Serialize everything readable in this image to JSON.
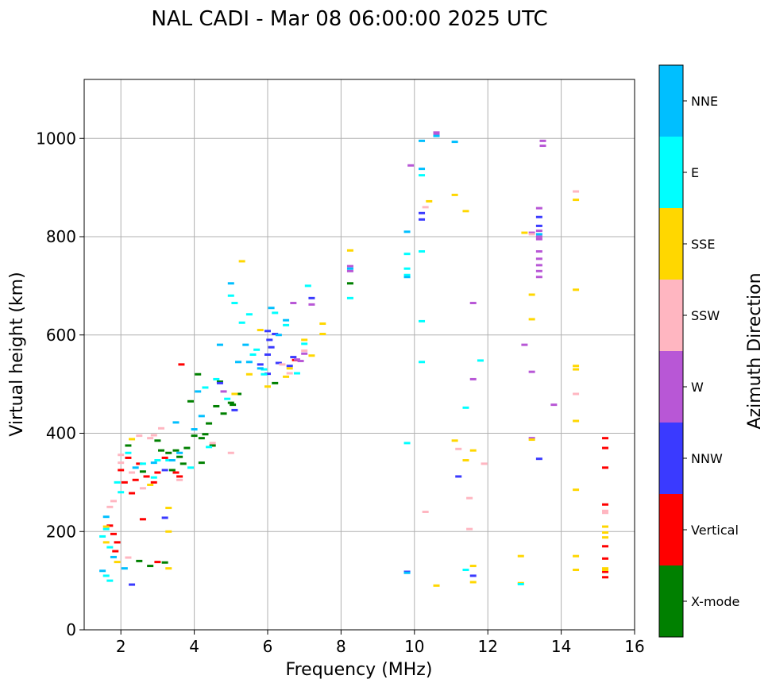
{
  "chart_data": {
    "type": "scatter",
    "title": "NAL CADI - Mar 08 06:00:00 2025 UTC",
    "xlabel": "Frequency (MHz)",
    "ylabel": "Virtual height (km)",
    "xlim": [
      1,
      16
    ],
    "ylim": [
      0,
      1120
    ],
    "xticks": [
      2,
      4,
      6,
      8,
      10,
      12,
      14,
      16
    ],
    "yticks": [
      0,
      200,
      400,
      600,
      800,
      1000
    ],
    "grid": true,
    "marker": "horizontal-dash",
    "colorbar": {
      "label": "Azimuth Direction",
      "categories": [
        {
          "name": "X-mode",
          "color": "#008000"
        },
        {
          "name": "Vertical",
          "color": "#ff0000"
        },
        {
          "name": "NNW",
          "color": "#3a3aff"
        },
        {
          "name": "W",
          "color": "#b857d6"
        },
        {
          "name": "SSW",
          "color": "#ffb6c1"
        },
        {
          "name": "SSE",
          "color": "#ffd700"
        },
        {
          "name": "E",
          "color": "#00ffff"
        },
        {
          "name": "NNE",
          "color": "#00bfff"
        }
      ]
    },
    "series": [
      {
        "name": "X-mode",
        "points": [
          [
            3.3,
            360
          ],
          [
            3.5,
            365
          ],
          [
            3.8,
            370
          ],
          [
            4.0,
            395
          ],
          [
            4.2,
            390
          ],
          [
            4.4,
            420
          ],
          [
            4.6,
            455
          ],
          [
            4.8,
            440
          ],
          [
            5.0,
            462
          ],
          [
            5.2,
            480
          ],
          [
            4.2,
            340
          ],
          [
            3.6,
            352
          ],
          [
            3.0,
            385
          ],
          [
            2.6,
            322
          ],
          [
            2.2,
            375
          ],
          [
            4.1,
            520
          ],
          [
            4.5,
            375
          ],
          [
            3.1,
            365
          ],
          [
            3.9,
            465
          ],
          [
            4.7,
            505
          ],
          [
            6.2,
            502
          ],
          [
            8.25,
            705
          ],
          [
            2.5,
            140
          ],
          [
            3.2,
            137
          ],
          [
            2.8,
            130
          ],
          [
            3.4,
            325
          ],
          [
            4.3,
            398
          ],
          [
            3.7,
            338
          ],
          [
            5.05,
            458
          ]
        ]
      },
      {
        "name": "Vertical",
        "points": [
          [
            1.8,
            195
          ],
          [
            1.9,
            178
          ],
          [
            2.0,
            325
          ],
          [
            2.2,
            350
          ],
          [
            2.4,
            305
          ],
          [
            2.5,
            338
          ],
          [
            2.7,
            312
          ],
          [
            2.9,
            300
          ],
          [
            3.0,
            320
          ],
          [
            3.2,
            350
          ],
          [
            3.5,
            320
          ],
          [
            3.6,
            312
          ],
          [
            2.3,
            278
          ],
          [
            1.7,
            212
          ],
          [
            1.85,
            160
          ],
          [
            15.2,
            390
          ],
          [
            15.2,
            370
          ],
          [
            15.2,
            330
          ],
          [
            15.2,
            255
          ],
          [
            15.2,
            170
          ],
          [
            15.2,
            145
          ],
          [
            15.2,
            118
          ],
          [
            15.2,
            107
          ],
          [
            3.65,
            540
          ],
          [
            2.6,
            225
          ],
          [
            3.0,
            138
          ],
          [
            2.1,
            300
          ],
          [
            6.75,
            549
          ]
        ]
      },
      {
        "name": "NNW",
        "points": [
          [
            2.3,
            92
          ],
          [
            3.2,
            325
          ],
          [
            5.8,
            540
          ],
          [
            6.0,
            560
          ],
          [
            6.1,
            575
          ],
          [
            6.2,
            602
          ],
          [
            6.6,
            537
          ],
          [
            6.7,
            555
          ],
          [
            10.2,
            848
          ],
          [
            10.2,
            835
          ],
          [
            11.2,
            312
          ],
          [
            13.4,
            840
          ],
          [
            13.4,
            822
          ],
          [
            9.8,
            118
          ],
          [
            7.2,
            675
          ],
          [
            4.7,
            502
          ],
          [
            6.0,
            608
          ],
          [
            6.3,
            543
          ],
          [
            11.6,
            110
          ],
          [
            5.1,
            447
          ],
          [
            3.2,
            228
          ],
          [
            13.4,
            348
          ],
          [
            6.0,
            521
          ],
          [
            6.05,
            590
          ]
        ]
      },
      {
        "name": "W",
        "points": [
          [
            13.5,
            995
          ],
          [
            13.5,
            985
          ],
          [
            10.6,
            1012
          ],
          [
            9.9,
            945
          ],
          [
            13.4,
            858
          ],
          [
            13.4,
            812
          ],
          [
            13.4,
            795
          ],
          [
            13.4,
            770
          ],
          [
            13.4,
            755
          ],
          [
            13.4,
            742
          ],
          [
            13.4,
            730
          ],
          [
            13.4,
            718
          ],
          [
            13.2,
            808
          ],
          [
            13.0,
            580
          ],
          [
            13.2,
            525
          ],
          [
            13.8,
            458
          ],
          [
            11.6,
            665
          ],
          [
            11.6,
            510
          ],
          [
            8.25,
            740
          ],
          [
            8.25,
            730
          ],
          [
            6.7,
            665
          ],
          [
            6.8,
            550
          ],
          [
            7.0,
            562
          ],
          [
            7.2,
            662
          ],
          [
            13.2,
            390
          ],
          [
            4.8,
            485
          ],
          [
            6.9,
            547
          ],
          [
            10.6,
            1008
          ],
          [
            13.4,
            800
          ]
        ]
      },
      {
        "name": "SSW",
        "points": [
          [
            2.0,
            340
          ],
          [
            2.3,
            320
          ],
          [
            2.5,
            395
          ],
          [
            2.6,
            288
          ],
          [
            2.8,
            390
          ],
          [
            3.1,
            410
          ],
          [
            3.6,
            305
          ],
          [
            4.5,
            380
          ],
          [
            1.7,
            250
          ],
          [
            1.8,
            262
          ],
          [
            2.2,
            147
          ],
          [
            10.3,
            860
          ],
          [
            10.3,
            240
          ],
          [
            11.2,
            368
          ],
          [
            11.5,
            268
          ],
          [
            11.5,
            205
          ],
          [
            11.9,
            338
          ],
          [
            13.2,
            805
          ],
          [
            14.4,
            892
          ],
          [
            14.4,
            480
          ],
          [
            15.2,
            242
          ],
          [
            15.2,
            238
          ],
          [
            5.0,
            360
          ],
          [
            6.4,
            540
          ],
          [
            7.0,
            568
          ],
          [
            6.6,
            522
          ],
          [
            2.9,
            396
          ],
          [
            2.0,
            356
          ]
        ]
      },
      {
        "name": "SSE",
        "points": [
          [
            1.6,
            210
          ],
          [
            1.6,
            178
          ],
          [
            1.9,
            138
          ],
          [
            2.3,
            388
          ],
          [
            2.8,
            295
          ],
          [
            3.3,
            248
          ],
          [
            3.3,
            200
          ],
          [
            3.3,
            125
          ],
          [
            5.3,
            750
          ],
          [
            5.1,
            480
          ],
          [
            5.5,
            520
          ],
          [
            5.8,
            610
          ],
          [
            6.0,
            495
          ],
          [
            6.5,
            515
          ],
          [
            6.6,
            532
          ],
          [
            7.0,
            590
          ],
          [
            7.2,
            558
          ],
          [
            7.5,
            623
          ],
          [
            7.5,
            602
          ],
          [
            8.25,
            772
          ],
          [
            10.4,
            872
          ],
          [
            10.6,
            90
          ],
          [
            11.1,
            885
          ],
          [
            11.4,
            852
          ],
          [
            11.1,
            385
          ],
          [
            11.6,
            365
          ],
          [
            11.4,
            345
          ],
          [
            11.6,
            130
          ],
          [
            11.6,
            97
          ],
          [
            12.9,
            150
          ],
          [
            12.9,
            95
          ],
          [
            13.0,
            808
          ],
          [
            13.2,
            682
          ],
          [
            13.2,
            632
          ],
          [
            13.2,
            387
          ],
          [
            14.4,
            875
          ],
          [
            14.4,
            692
          ],
          [
            14.4,
            537
          ],
          [
            14.4,
            530
          ],
          [
            14.4,
            425
          ],
          [
            14.4,
            285
          ],
          [
            14.4,
            150
          ],
          [
            14.4,
            122
          ],
          [
            15.2,
            210
          ],
          [
            15.2,
            198
          ],
          [
            15.2,
            188
          ],
          [
            15.2,
            125
          ],
          [
            15.2,
            122
          ]
        ]
      },
      {
        "name": "E",
        "points": [
          [
            1.6,
            205
          ],
          [
            1.5,
            190
          ],
          [
            1.7,
            168
          ],
          [
            1.6,
            110
          ],
          [
            1.7,
            100
          ],
          [
            1.9,
            300
          ],
          [
            2.0,
            280
          ],
          [
            2.2,
            360
          ],
          [
            2.6,
            338
          ],
          [
            2.9,
            310
          ],
          [
            3.0,
            345
          ],
          [
            3.3,
            345
          ],
          [
            3.9,
            330
          ],
          [
            4.4,
            372
          ],
          [
            4.6,
            510
          ],
          [
            4.9,
            470
          ],
          [
            5.0,
            680
          ],
          [
            5.1,
            665
          ],
          [
            5.3,
            625
          ],
          [
            5.5,
            642
          ],
          [
            5.7,
            570
          ],
          [
            5.9,
            530
          ],
          [
            5.9,
            520
          ],
          [
            6.2,
            645
          ],
          [
            6.5,
            620
          ],
          [
            7.0,
            582
          ],
          [
            7.1,
            700
          ],
          [
            9.8,
            765
          ],
          [
            9.8,
            735
          ],
          [
            9.8,
            722
          ],
          [
            10.2,
            770
          ],
          [
            10.2,
            628
          ],
          [
            10.2,
            545
          ],
          [
            9.8,
            380
          ],
          [
            11.8,
            548
          ],
          [
            11.4,
            452
          ],
          [
            11.4,
            122
          ],
          [
            12.9,
            93
          ],
          [
            6.8,
            522
          ],
          [
            8.25,
            675
          ],
          [
            10.2,
            925
          ],
          [
            5.6,
            560
          ],
          [
            4.3,
            493
          ]
        ]
      },
      {
        "name": "NNE",
        "points": [
          [
            1.6,
            230
          ],
          [
            1.5,
            120
          ],
          [
            1.8,
            148
          ],
          [
            2.1,
            125
          ],
          [
            2.4,
            330
          ],
          [
            2.9,
            340
          ],
          [
            3.4,
            345
          ],
          [
            3.6,
            360
          ],
          [
            4.0,
            408
          ],
          [
            4.1,
            485
          ],
          [
            4.7,
            580
          ],
          [
            5.0,
            705
          ],
          [
            5.4,
            580
          ],
          [
            5.5,
            545
          ],
          [
            5.8,
            532
          ],
          [
            6.3,
            600
          ],
          [
            6.5,
            630
          ],
          [
            6.1,
            655
          ],
          [
            9.8,
            810
          ],
          [
            9.8,
            718
          ],
          [
            9.8,
            116
          ],
          [
            10.2,
            995
          ],
          [
            10.2,
            938
          ],
          [
            11.1,
            993
          ],
          [
            10.6,
            1005
          ],
          [
            13.4,
            805
          ],
          [
            8.25,
            735
          ],
          [
            4.2,
            435
          ],
          [
            3.5,
            422
          ],
          [
            5.2,
            545
          ]
        ]
      }
    ]
  }
}
